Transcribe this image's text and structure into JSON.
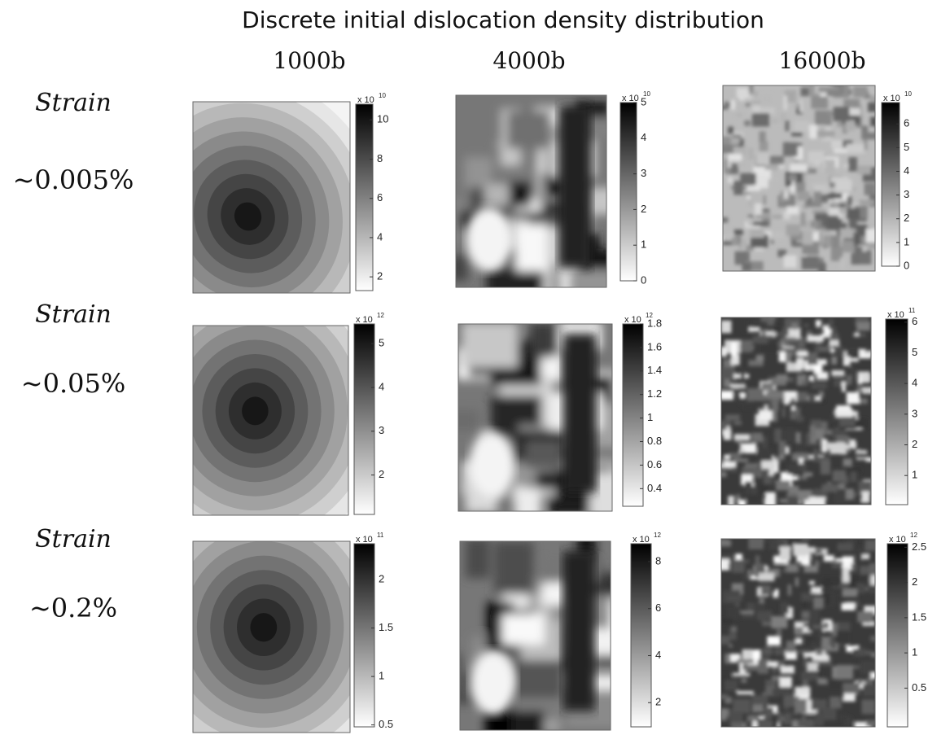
{
  "title": "Discrete initial dislocation density distribution",
  "columns": [
    "1000b",
    "4000b",
    "16000b"
  ],
  "rows": [
    {
      "label": "Strain",
      "strain": "~0.005%"
    },
    {
      "label": "Strain",
      "strain": "~0.05%"
    },
    {
      "label": "Strain",
      "strain": "~0.2%"
    }
  ],
  "panels": [
    [
      {
        "multiplier": "x 10",
        "exponent": "10",
        "range": [
          1.3,
          10.8
        ],
        "ticks": [
          10,
          8,
          6,
          4,
          2
        ]
      },
      {
        "multiplier": "x 10",
        "exponent": "10",
        "range": [
          0,
          5
        ],
        "ticks": [
          5,
          4,
          3,
          2,
          1,
          0
        ]
      },
      {
        "multiplier": "x 10",
        "exponent": "10",
        "range": [
          0,
          6.9
        ],
        "ticks": [
          6,
          5,
          4,
          3,
          2,
          1,
          0
        ]
      }
    ],
    [
      {
        "multiplier": "x 10",
        "exponent": "12",
        "range": [
          1.1,
          5.45
        ],
        "ticks": [
          5,
          4,
          3,
          2
        ]
      },
      {
        "multiplier": "x 10",
        "exponent": "12",
        "range": [
          0.25,
          1.8
        ],
        "ticks": [
          1.8,
          1.6,
          1.4,
          1.2,
          1,
          0.8,
          0.6,
          0.4
        ]
      },
      {
        "multiplier": "x 10",
        "exponent": "11",
        "range": [
          0.05,
          6.1
        ],
        "ticks": [
          6,
          5,
          4,
          3,
          2,
          1
        ]
      }
    ],
    [
      {
        "multiplier": "x 10",
        "exponent": "11",
        "range": [
          0.48,
          2.37
        ],
        "ticks": [
          2,
          1.5,
          1,
          0.5
        ]
      },
      {
        "multiplier": "x 10",
        "exponent": "12",
        "range": [
          0.97,
          8.76
        ],
        "ticks": [
          8,
          6,
          4,
          2
        ]
      },
      {
        "multiplier": "x 10",
        "exponent": "12",
        "range": [
          -0.05,
          2.55
        ],
        "ticks": [
          2.5,
          2,
          1.5,
          1,
          0.5
        ]
      }
    ]
  ]
}
